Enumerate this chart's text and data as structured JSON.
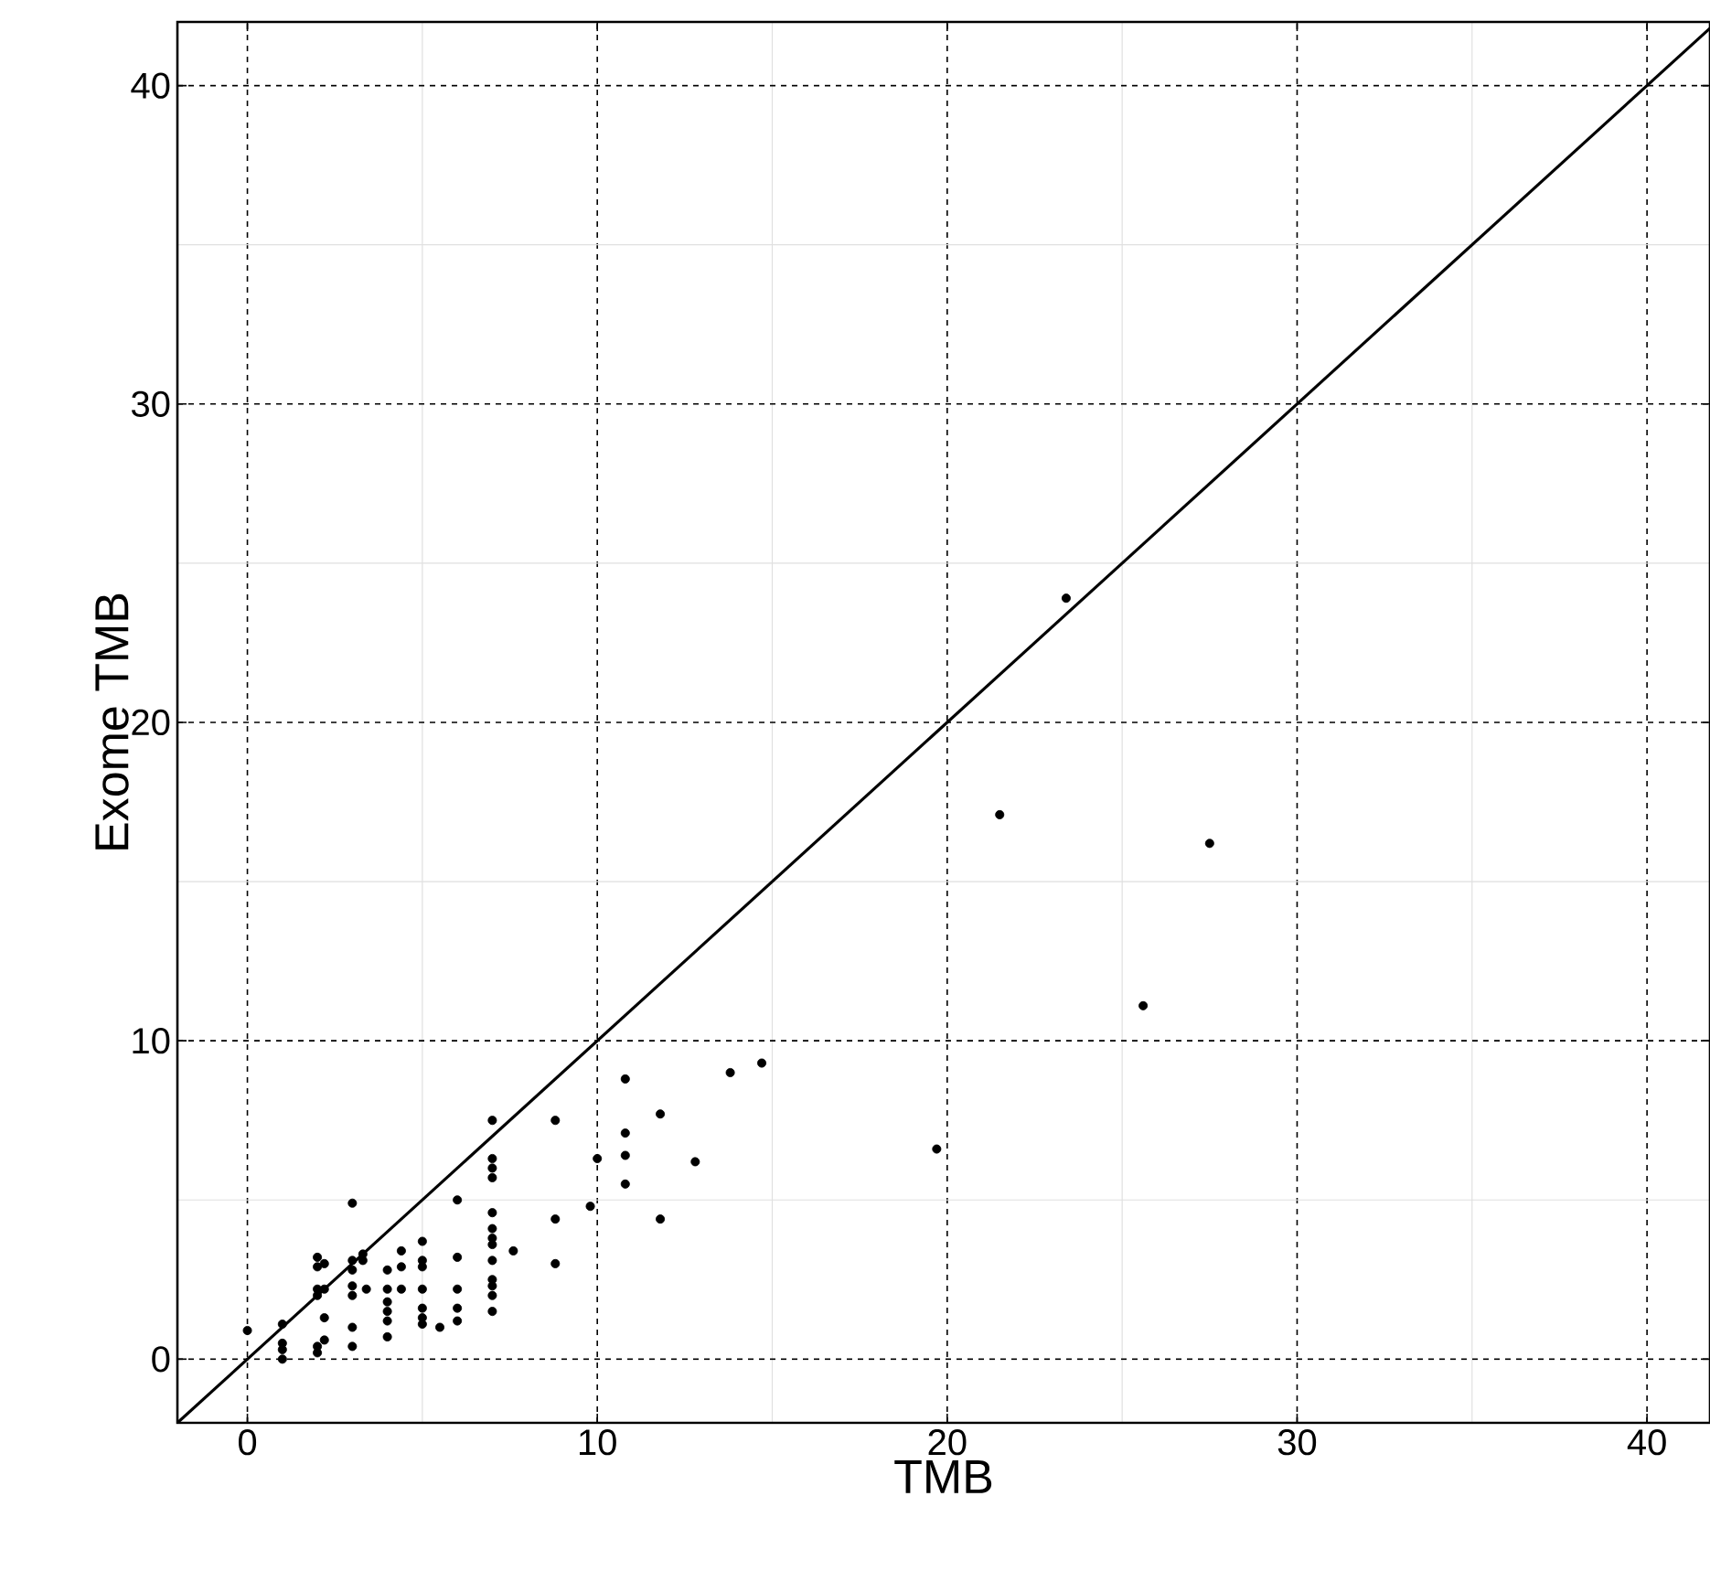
{
  "chart_data": {
    "type": "scatter",
    "xlabel": "TMB",
    "ylabel": "Exome TMB",
    "xlim": [
      -2,
      41.8
    ],
    "ylim": [
      -2,
      42
    ],
    "xticks": [
      0,
      {
        "value": 5,
        "label": null
      },
      10,
      {
        "value": 15,
        "label": null
      },
      20,
      {
        "value": 25,
        "label": null
      },
      30,
      {
        "value": 35,
        "label": null
      },
      40
    ],
    "yticks": [
      0,
      {
        "value": 5,
        "label": null
      },
      10,
      {
        "value": 15,
        "label": null
      },
      20,
      {
        "value": 25,
        "label": null
      },
      30,
      {
        "value": 35,
        "label": null
      },
      40
    ],
    "grid": true,
    "marker": "circle",
    "series": [
      {
        "color": "#000000",
        "x": [
          0,
          1,
          1,
          1,
          1,
          2,
          2,
          2,
          2,
          2,
          2,
          2.2,
          2.2,
          2.2,
          2.2,
          3,
          3,
          3,
          3,
          3,
          3,
          3,
          3.3,
          3.3,
          3.4,
          4,
          4,
          4,
          4,
          4,
          4,
          4.4,
          4.4,
          4.4,
          5,
          5,
          5,
          5,
          5,
          5,
          5,
          5.5,
          6,
          6,
          6,
          6,
          6,
          7,
          7,
          7,
          7,
          7,
          7,
          7,
          7,
          7,
          7,
          7,
          7,
          7,
          7.6,
          8.8,
          8.8,
          8.8,
          9.8,
          10,
          10.8,
          10.8,
          10.8,
          10.8,
          11.8,
          11.8,
          12.8,
          13.8,
          14.7,
          19.7,
          21.5,
          23.4,
          25.6,
          27.5
        ],
        "values": [
          0.9,
          1.1,
          0.5,
          0.3,
          0,
          3.2,
          2.9,
          2.2,
          2,
          0.4,
          0.2,
          3,
          2.2,
          1.3,
          0.6,
          4.9,
          3.1,
          2.8,
          2.3,
          2,
          1,
          0.4,
          3.3,
          3.1,
          2.2,
          2.8,
          2.2,
          1.8,
          1.5,
          1.2,
          0.7,
          3.4,
          2.9,
          2.2,
          3.7,
          3.1,
          2.9,
          2.2,
          1.6,
          1.3,
          1.1,
          1,
          5,
          3.2,
          2.2,
          1.6,
          1.2,
          7.5,
          6.3,
          6,
          5.7,
          4.6,
          4.1,
          3.8,
          3.6,
          3.1,
          2.5,
          2.3,
          2,
          1.5,
          3.4,
          7.5,
          4.4,
          3,
          4.8,
          6.3,
          8.8,
          7.1,
          6.4,
          5.5,
          7.7,
          4.4,
          6.2,
          9,
          9.3,
          6.6,
          17.1,
          23.9,
          11.1,
          16.2
        ]
      },
      {
        "type": "line",
        "color": "#000000",
        "line_style": "solid",
        "marker": "none",
        "x": [
          -2,
          41.8
        ],
        "values": [
          -2,
          41.8
        ]
      }
    ]
  }
}
